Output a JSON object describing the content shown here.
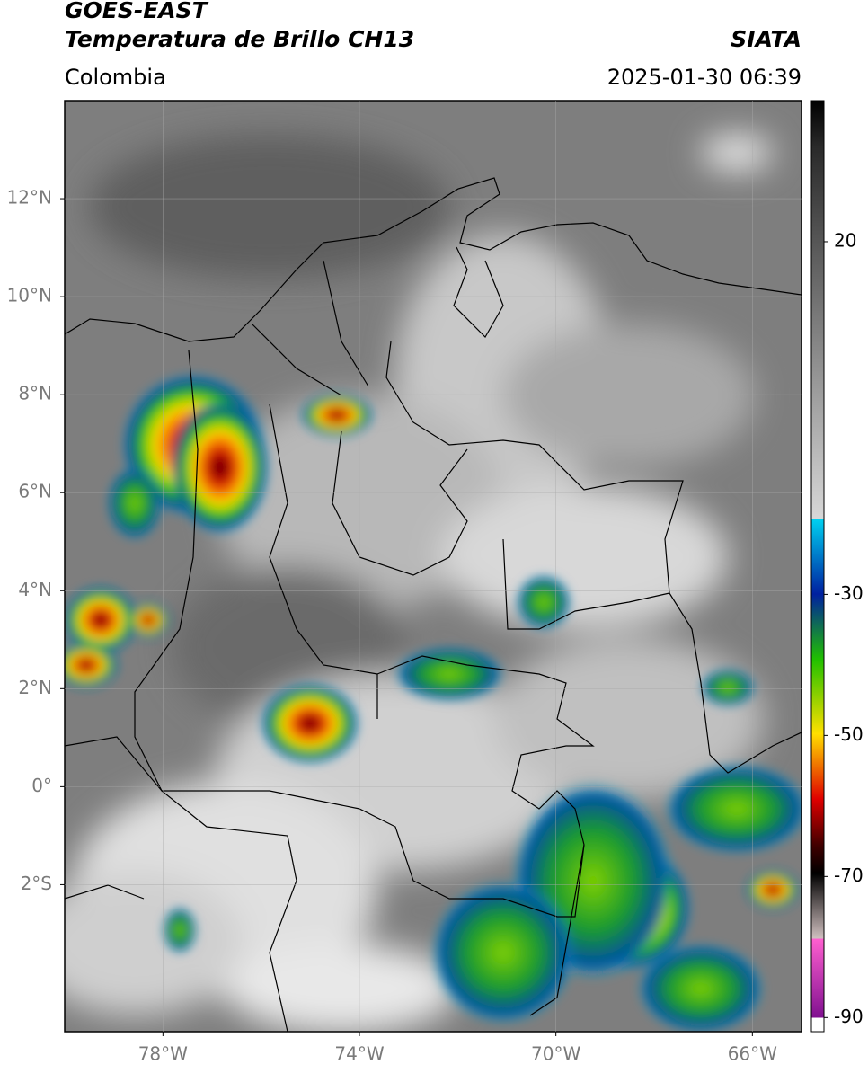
{
  "header": {
    "title_line1": "GOES-EAST",
    "title_line2": "Temperatura de Brillo CH13",
    "agency": "SIATA",
    "region": "Colombia",
    "datetime": "2025-01-30 06:39"
  },
  "map": {
    "lat_lim": [
      -5,
      14
    ],
    "lon_lim": [
      -80,
      -65
    ],
    "lat_ticks": [
      {
        "value": 12,
        "label": "12°N"
      },
      {
        "value": 10,
        "label": "10°N"
      },
      {
        "value": 8,
        "label": "8°N"
      },
      {
        "value": 6,
        "label": "6°N"
      },
      {
        "value": 4,
        "label": "4°N"
      },
      {
        "value": 2,
        "label": "2°N"
      },
      {
        "value": 0,
        "label": "0°"
      },
      {
        "value": -2,
        "label": "2°S"
      }
    ],
    "lon_ticks": [
      {
        "value": -78,
        "label": "78°W"
      },
      {
        "value": -74,
        "label": "74°W"
      },
      {
        "value": -70,
        "label": "70°W"
      },
      {
        "value": -66,
        "label": "66°W"
      }
    ]
  },
  "colorbar": {
    "lim": [
      -92,
      40
    ],
    "ticks": [
      20,
      -30,
      -50,
      -70,
      -90
    ]
  }
}
